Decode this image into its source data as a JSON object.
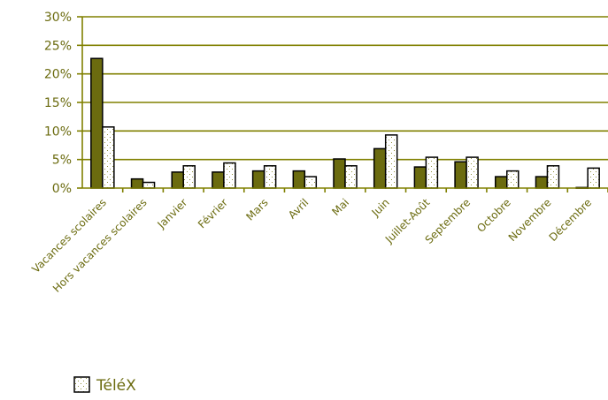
{
  "chart_data": {
    "type": "bar",
    "categories": [
      "Vacances scolaires",
      "Hors vacances scolaires",
      "Janvier",
      "Février",
      "Mars",
      "Avril",
      "Mai",
      "Juin",
      "Juillet-Août",
      "Septembre",
      "Octobre",
      "Novembre",
      "Décembre"
    ],
    "series": [
      {
        "values": [
          22.7,
          1.6,
          2.8,
          2.8,
          3.0,
          3.0,
          5.1,
          6.9,
          3.7,
          4.6,
          2.0,
          2.0,
          0.1
        ]
      },
      {
        "name": "TéléX",
        "values": [
          10.7,
          1.0,
          3.9,
          4.4,
          3.9,
          2.0,
          3.9,
          9.3,
          5.4,
          5.4,
          3.0,
          3.9,
          3.5
        ]
      }
    ],
    "y_ticks": [
      "0%",
      "5%",
      "10%",
      "15%",
      "20%",
      "25%",
      "30%"
    ],
    "ylim": [
      0,
      30
    ],
    "y_unit": "%",
    "grid": true,
    "legend_position": "bottom-left",
    "colors": {
      "series_1": "#6b6b0f",
      "series_2": "#ffffff",
      "text": "#6b6b0f",
      "grid": "#808000",
      "outline": "#000000"
    }
  },
  "legend": {
    "label": "TéléX"
  }
}
